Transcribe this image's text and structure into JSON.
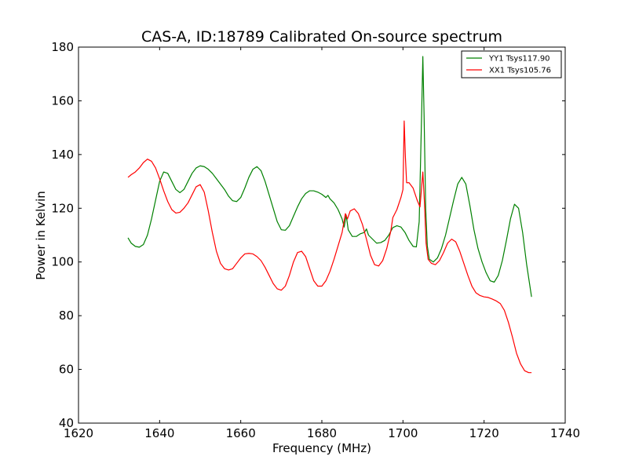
{
  "chart_data": {
    "type": "line",
    "title": "CAS-A, ID:18789 Calibrated On-source spectrum",
    "xlabel": "Frequency (MHz)",
    "ylabel": "Power in Kelvin",
    "xlim": [
      1620,
      1740
    ],
    "ylim": [
      40,
      180
    ],
    "xticks": [
      1620,
      1640,
      1660,
      1680,
      1700,
      1720,
      1740
    ],
    "yticks": [
      40,
      60,
      80,
      100,
      120,
      140,
      160,
      180
    ],
    "grid": false,
    "legend_position": "top-right",
    "series": [
      {
        "name": "YY1 Tsys117.90",
        "color": "#008000",
        "points": [
          [
            1632.2,
            109.0
          ],
          [
            1633.0,
            107.0
          ],
          [
            1634.0,
            105.8
          ],
          [
            1635.0,
            105.5
          ],
          [
            1636.0,
            106.5
          ],
          [
            1637.0,
            110.0
          ],
          [
            1638.0,
            116.0
          ],
          [
            1639.0,
            123.0
          ],
          [
            1640.0,
            130.0
          ],
          [
            1641.0,
            133.5
          ],
          [
            1642.0,
            133.0
          ],
          [
            1643.0,
            130.0
          ],
          [
            1644.0,
            127.0
          ],
          [
            1645.0,
            125.8
          ],
          [
            1646.0,
            127.0
          ],
          [
            1647.0,
            130.0
          ],
          [
            1648.0,
            133.0
          ],
          [
            1649.0,
            135.0
          ],
          [
            1650.0,
            135.8
          ],
          [
            1651.0,
            135.5
          ],
          [
            1652.0,
            134.5
          ],
          [
            1653.0,
            133.0
          ],
          [
            1654.0,
            131.0
          ],
          [
            1655.0,
            129.0
          ],
          [
            1656.0,
            127.0
          ],
          [
            1657.0,
            124.5
          ],
          [
            1658.0,
            122.8
          ],
          [
            1659.0,
            122.5
          ],
          [
            1660.0,
            124.0
          ],
          [
            1661.0,
            127.5
          ],
          [
            1662.0,
            131.5
          ],
          [
            1663.0,
            134.5
          ],
          [
            1664.0,
            135.5
          ],
          [
            1665.0,
            134.0
          ],
          [
            1666.0,
            130.0
          ],
          [
            1667.0,
            125.0
          ],
          [
            1668.0,
            120.0
          ],
          [
            1669.0,
            115.0
          ],
          [
            1670.0,
            112.0
          ],
          [
            1671.0,
            111.8
          ],
          [
            1672.0,
            113.5
          ],
          [
            1673.0,
            117.0
          ],
          [
            1674.0,
            120.5
          ],
          [
            1675.0,
            123.5
          ],
          [
            1676.0,
            125.5
          ],
          [
            1677.0,
            126.5
          ],
          [
            1678.0,
            126.5
          ],
          [
            1679.0,
            126.0
          ],
          [
            1680.0,
            125.2
          ],
          [
            1681.0,
            124.0
          ],
          [
            1681.5,
            124.8
          ],
          [
            1682.0,
            123.5
          ],
          [
            1683.0,
            122.0
          ],
          [
            1684.0,
            119.5
          ],
          [
            1685.0,
            116.0
          ],
          [
            1685.5,
            113.0
          ],
          [
            1686.0,
            117.5
          ],
          [
            1686.5,
            112.0
          ],
          [
            1687.5,
            109.5
          ],
          [
            1688.5,
            109.5
          ],
          [
            1689.5,
            110.5
          ],
          [
            1690.5,
            111.0
          ],
          [
            1691.0,
            112.3
          ],
          [
            1691.5,
            110.0
          ],
          [
            1692.5,
            108.5
          ],
          [
            1693.5,
            107.0
          ],
          [
            1694.5,
            107.2
          ],
          [
            1695.5,
            108.0
          ],
          [
            1696.5,
            110.0
          ],
          [
            1697.5,
            112.8
          ],
          [
            1698.5,
            113.5
          ],
          [
            1699.5,
            113.0
          ],
          [
            1700.5,
            111.0
          ],
          [
            1701.5,
            108.0
          ],
          [
            1702.5,
            105.8
          ],
          [
            1703.3,
            105.6
          ],
          [
            1704.0,
            115.0
          ],
          [
            1704.6,
            155.0
          ],
          [
            1704.9,
            176.5
          ],
          [
            1705.2,
            155.0
          ],
          [
            1705.6,
            120.0
          ],
          [
            1706.0,
            106.0
          ],
          [
            1706.5,
            101.0
          ],
          [
            1707.5,
            100.0
          ],
          [
            1708.5,
            101.5
          ],
          [
            1709.5,
            105.0
          ],
          [
            1710.5,
            110.0
          ],
          [
            1711.5,
            116.5
          ],
          [
            1712.5,
            123.0
          ],
          [
            1713.5,
            129.0
          ],
          [
            1714.5,
            131.5
          ],
          [
            1715.5,
            129.0
          ],
          [
            1716.5,
            121.0
          ],
          [
            1717.5,
            112.0
          ],
          [
            1718.5,
            105.0
          ],
          [
            1719.5,
            100.0
          ],
          [
            1720.5,
            96.0
          ],
          [
            1721.5,
            93.0
          ],
          [
            1722.5,
            92.5
          ],
          [
            1723.5,
            95.0
          ],
          [
            1724.5,
            100.5
          ],
          [
            1725.5,
            108.0
          ],
          [
            1726.5,
            116.0
          ],
          [
            1727.5,
            121.5
          ],
          [
            1728.5,
            120.0
          ],
          [
            1729.5,
            111.0
          ],
          [
            1730.5,
            99.0
          ],
          [
            1731.7,
            87.0
          ]
        ]
      },
      {
        "name": "XX1 Tsys105.76",
        "color": "#ff0000",
        "points": [
          [
            1632.2,
            131.5
          ],
          [
            1633.0,
            132.5
          ],
          [
            1634.0,
            133.5
          ],
          [
            1635.0,
            135.0
          ],
          [
            1636.0,
            137.0
          ],
          [
            1637.0,
            138.3
          ],
          [
            1638.0,
            137.5
          ],
          [
            1639.0,
            135.0
          ],
          [
            1640.0,
            131.0
          ],
          [
            1641.0,
            126.5
          ],
          [
            1642.0,
            122.5
          ],
          [
            1643.0,
            119.5
          ],
          [
            1644.0,
            118.2
          ],
          [
            1645.0,
            118.5
          ],
          [
            1646.0,
            120.0
          ],
          [
            1647.0,
            122.0
          ],
          [
            1648.0,
            125.0
          ],
          [
            1649.0,
            128.0
          ],
          [
            1650.0,
            128.8
          ],
          [
            1651.0,
            126.0
          ],
          [
            1652.0,
            119.0
          ],
          [
            1653.0,
            111.0
          ],
          [
            1654.0,
            104.0
          ],
          [
            1655.0,
            99.5
          ],
          [
            1656.0,
            97.5
          ],
          [
            1657.0,
            97.0
          ],
          [
            1658.0,
            97.5
          ],
          [
            1659.0,
            99.5
          ],
          [
            1660.0,
            101.5
          ],
          [
            1661.0,
            103.0
          ],
          [
            1662.0,
            103.2
          ],
          [
            1663.0,
            103.0
          ],
          [
            1664.0,
            102.0
          ],
          [
            1665.0,
            100.5
          ],
          [
            1666.0,
            98.0
          ],
          [
            1667.0,
            95.0
          ],
          [
            1668.0,
            92.0
          ],
          [
            1669.0,
            90.0
          ],
          [
            1670.0,
            89.5
          ],
          [
            1671.0,
            91.0
          ],
          [
            1672.0,
            95.0
          ],
          [
            1673.0,
            100.0
          ],
          [
            1674.0,
            103.5
          ],
          [
            1675.0,
            104.0
          ],
          [
            1676.0,
            102.0
          ],
          [
            1677.0,
            97.5
          ],
          [
            1678.0,
            93.0
          ],
          [
            1679.0,
            91.0
          ],
          [
            1680.0,
            91.0
          ],
          [
            1681.0,
            93.0
          ],
          [
            1682.0,
            96.5
          ],
          [
            1683.0,
            101.0
          ],
          [
            1684.0,
            106.0
          ],
          [
            1685.0,
            111.0
          ],
          [
            1685.8,
            118.0
          ],
          [
            1686.3,
            116.0
          ],
          [
            1687.0,
            119.0
          ],
          [
            1688.0,
            119.8
          ],
          [
            1689.0,
            118.0
          ],
          [
            1690.0,
            114.0
          ],
          [
            1691.0,
            108.5
          ],
          [
            1692.0,
            102.5
          ],
          [
            1693.0,
            99.0
          ],
          [
            1694.0,
            98.5
          ],
          [
            1695.0,
            100.5
          ],
          [
            1696.0,
            105.0
          ],
          [
            1697.0,
            111.5
          ],
          [
            1697.5,
            116.5
          ],
          [
            1698.5,
            119.5
          ],
          [
            1699.5,
            124.0
          ],
          [
            1700.0,
            127.0
          ],
          [
            1700.3,
            152.5
          ],
          [
            1700.6,
            139.0
          ],
          [
            1700.9,
            129.5
          ],
          [
            1701.5,
            129.5
          ],
          [
            1702.5,
            127.5
          ],
          [
            1703.5,
            123.0
          ],
          [
            1704.2,
            120.5
          ],
          [
            1704.9,
            133.5
          ],
          [
            1705.3,
            122.0
          ],
          [
            1705.7,
            107.0
          ],
          [
            1706.2,
            101.0
          ],
          [
            1707.0,
            99.5
          ],
          [
            1708.0,
            99.0
          ],
          [
            1709.0,
            100.5
          ],
          [
            1710.0,
            103.5
          ],
          [
            1711.0,
            107.0
          ],
          [
            1712.0,
            108.5
          ],
          [
            1713.0,
            107.5
          ],
          [
            1714.0,
            104.0
          ],
          [
            1715.0,
            99.5
          ],
          [
            1716.0,
            95.0
          ],
          [
            1717.0,
            91.0
          ],
          [
            1718.0,
            88.5
          ],
          [
            1719.0,
            87.5
          ],
          [
            1720.0,
            87.0
          ],
          [
            1721.0,
            86.8
          ],
          [
            1722.0,
            86.2
          ],
          [
            1723.0,
            85.5
          ],
          [
            1724.0,
            84.5
          ],
          [
            1725.0,
            82.0
          ],
          [
            1726.0,
            77.5
          ],
          [
            1727.0,
            72.0
          ],
          [
            1728.0,
            66.0
          ],
          [
            1729.0,
            62.0
          ],
          [
            1730.0,
            59.5
          ],
          [
            1731.0,
            58.8
          ],
          [
            1731.7,
            58.8
          ]
        ]
      }
    ]
  }
}
